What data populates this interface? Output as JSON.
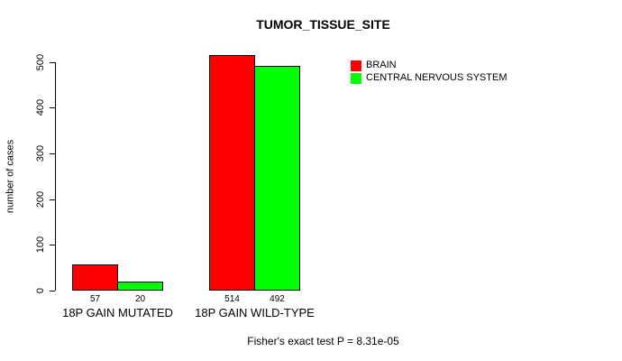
{
  "chart_data": {
    "type": "bar",
    "title": "TUMOR_TISSUE_SITE",
    "ylabel": "number of cases",
    "xlabel": "",
    "categories": [
      "18P GAIN MUTATED",
      "18P GAIN WILD-TYPE"
    ],
    "series": [
      {
        "name": "BRAIN",
        "color": "#FF0000",
        "values": [
          57,
          514
        ]
      },
      {
        "name": "CENTRAL NERVOUS SYSTEM",
        "color": "#00FF00",
        "values": [
          20,
          492
        ]
      }
    ],
    "bar_value_labels": [
      [
        "57",
        "514"
      ],
      [
        "20",
        "492"
      ]
    ],
    "yticks": [
      0,
      100,
      200,
      300,
      400,
      500
    ],
    "ylim": [
      0,
      500
    ],
    "grid": false,
    "legend_position": "right",
    "footer": "Fisher's exact test P = 8.31e-05",
    "colors": {
      "background": "#FFFFFF",
      "axis": "#000000",
      "text": "#000000"
    }
  }
}
